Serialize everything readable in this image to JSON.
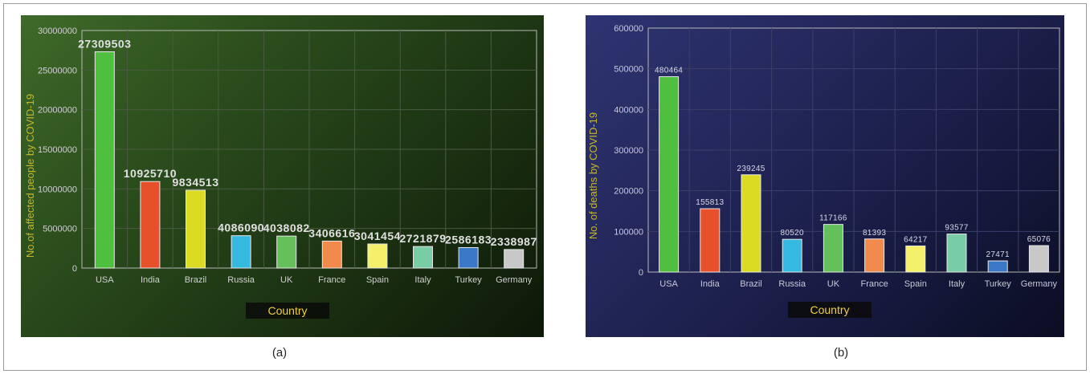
{
  "captions": [
    "(a)",
    "(b)"
  ],
  "chart_data": [
    {
      "type": "bar",
      "title": "",
      "xlabel": "Country",
      "ylabel": "No.of affected people by COVID-19",
      "categories": [
        "USA",
        "India",
        "Brazil",
        "Russia",
        "UK",
        "France",
        "Spain",
        "Italy",
        "Turkey",
        "Germany"
      ],
      "values": [
        27309503,
        10925710,
        9834513,
        4086090,
        4038082,
        3406616,
        3041454,
        2721879,
        2586183,
        2338987
      ],
      "value_labels": [
        "27309503",
        "10925710",
        "9834513",
        "4086090",
        "4038082",
        "3406616",
        "3041454",
        "2721879",
        "2586183",
        "2338987"
      ],
      "y_ticks": [
        "0",
        "5000000",
        "10000000",
        "15000000",
        "20000000",
        "25000000",
        "30000000"
      ],
      "ylim": [
        0,
        30000000
      ],
      "grid": true,
      "bar_colors": [
        "#4fbf3f",
        "#e6502a",
        "#dbdb24",
        "#35b9e0",
        "#63c05a",
        "#f28a4e",
        "#f4f06a",
        "#78cca6",
        "#3a78c8",
        "#c8c8c8"
      ],
      "colors": {
        "axis_text": "#d0d0d0",
        "value_text": "#e0e0e0",
        "ylabel_color": "#c8b828",
        "xlabel_color": "#f0d040",
        "grid": "#4a5a42"
      }
    },
    {
      "type": "bar",
      "title": "",
      "xlabel": "Country",
      "ylabel": "No. of deaths by COVID-19",
      "categories": [
        "USA",
        "India",
        "Brazil",
        "Russia",
        "UK",
        "France",
        "Spain",
        "Italy",
        "Turkey",
        "Germany"
      ],
      "values": [
        480464,
        155813,
        239245,
        80520,
        117166,
        81393,
        64217,
        93577,
        27471,
        65076
      ],
      "value_labels": [
        "480464",
        "155813",
        "239245",
        "80520",
        "117166",
        "81393",
        "64217",
        "93577",
        "27471",
        "65076"
      ],
      "y_ticks": [
        "0",
        "100000",
        "200000",
        "300000",
        "400000",
        "500000",
        "600000"
      ],
      "ylim": [
        0,
        600000
      ],
      "grid": true,
      "bar_colors": [
        "#4fbf3f",
        "#e6502a",
        "#dbdb24",
        "#35b9e0",
        "#63c05a",
        "#f28a4e",
        "#f4f06a",
        "#78cca6",
        "#3a78c8",
        "#c8c8c8"
      ],
      "colors": {
        "axis_text": "#c8c8d8",
        "value_text": "#d8d8e8",
        "ylabel_color": "#c8b828",
        "xlabel_color": "#f0d040",
        "grid": "#3a3f6a"
      }
    }
  ]
}
